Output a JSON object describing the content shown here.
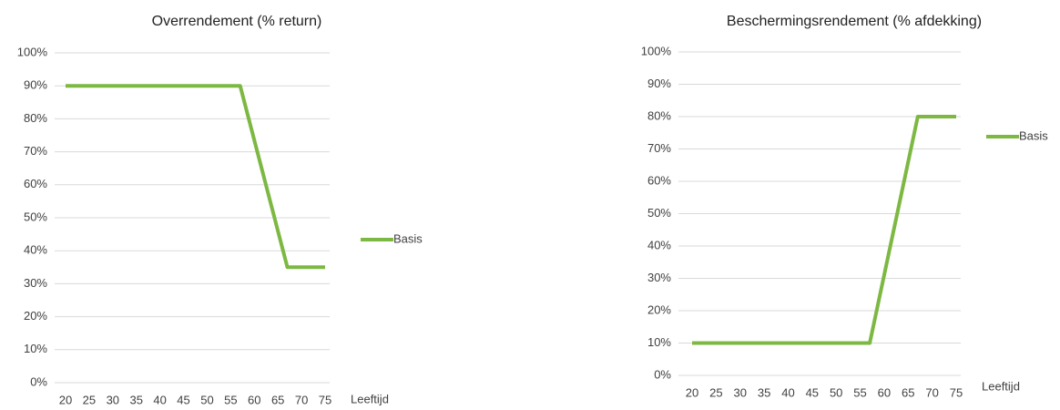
{
  "chart_data": [
    {
      "type": "line",
      "title": "Overrendement  (% return)",
      "x_label": "Leeftijd",
      "x": [
        20,
        57,
        67,
        75
      ],
      "series": [
        {
          "name": "Basis",
          "color": "#7cb842",
          "values": [
            90,
            90,
            35,
            35
          ]
        }
      ],
      "xlim": [
        20,
        75
      ],
      "xticks": [
        20,
        25,
        30,
        35,
        40,
        45,
        50,
        55,
        60,
        65,
        70,
        75
      ],
      "ylim": [
        0,
        100
      ],
      "yticks": [
        {
          "value": 0,
          "label": "0%"
        },
        {
          "value": 10,
          "label": "10%"
        },
        {
          "value": 20,
          "label": "20%"
        },
        {
          "value": 30,
          "label": "30%"
        },
        {
          "value": 40,
          "label": "40%"
        },
        {
          "value": 50,
          "label": "50%"
        },
        {
          "value": 60,
          "label": "60%"
        },
        {
          "value": 70,
          "label": "70%"
        },
        {
          "value": 80,
          "label": "80%"
        },
        {
          "value": 90,
          "label": "90%"
        },
        {
          "value": 100,
          "label": "100%"
        }
      ],
      "grid": true,
      "legend": "right"
    },
    {
      "type": "line",
      "title": "Beschermingsrendement  (% afdekking)",
      "x_label": "Leeftijd",
      "x": [
        20,
        57,
        67,
        75
      ],
      "series": [
        {
          "name": "Basis",
          "color": "#7cb842",
          "values": [
            10,
            10,
            80,
            80
          ]
        }
      ],
      "xlim": [
        20,
        75
      ],
      "xticks": [
        20,
        25,
        30,
        35,
        40,
        45,
        50,
        55,
        60,
        65,
        70,
        75
      ],
      "ylim": [
        0,
        100
      ],
      "yticks": [
        {
          "value": 0,
          "label": "0%"
        },
        {
          "value": 10,
          "label": "10%"
        },
        {
          "value": 20,
          "label": "20%"
        },
        {
          "value": 30,
          "label": "30%"
        },
        {
          "value": 40,
          "label": "40%"
        },
        {
          "value": 50,
          "label": "50%"
        },
        {
          "value": 60,
          "label": "60%"
        },
        {
          "value": 70,
          "label": "70%"
        },
        {
          "value": 80,
          "label": "80%"
        },
        {
          "value": 90,
          "label": "90%"
        },
        {
          "value": 100,
          "label": "100%"
        }
      ],
      "grid": true,
      "legend": "upper right"
    }
  ]
}
